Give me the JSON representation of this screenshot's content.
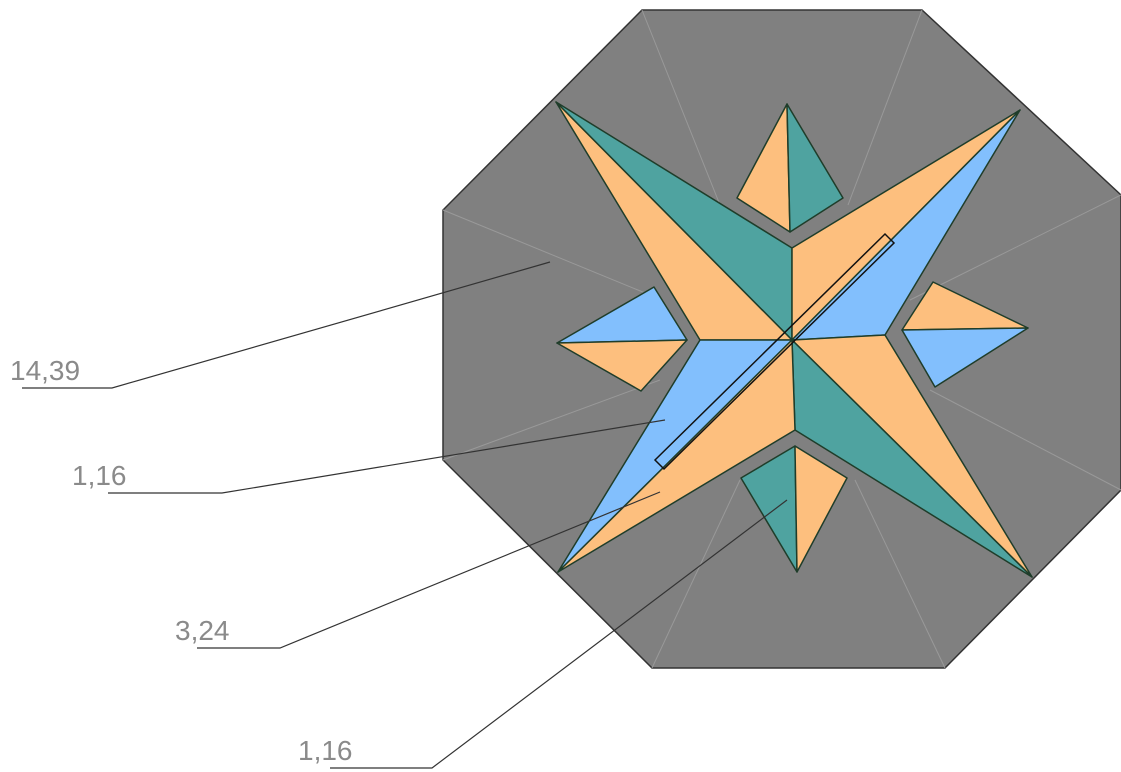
{
  "labels": [
    "14,39",
    "1,16",
    "3,24",
    "1,16"
  ]
}
